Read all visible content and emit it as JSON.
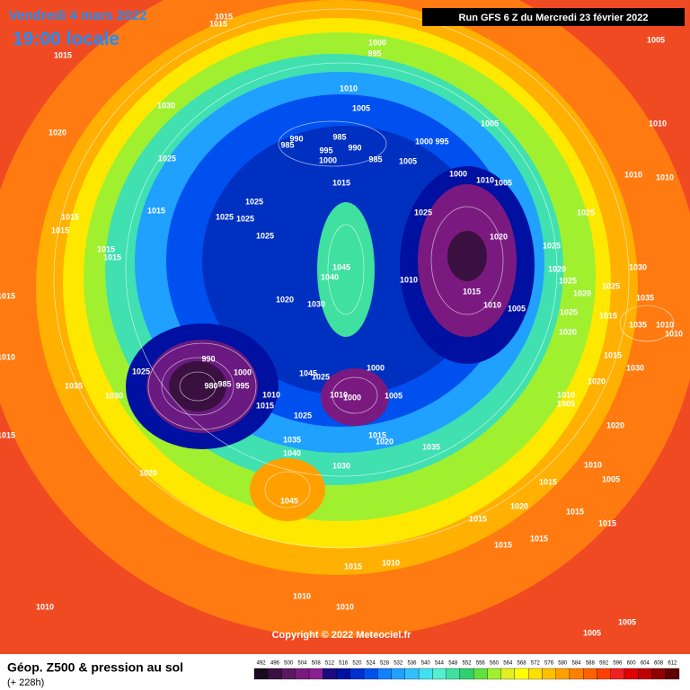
{
  "header": {
    "date": "Vendredi 4 mars 2022",
    "time": "19:00 locale",
    "run": "Run GFS 6 Z du Mercredi 23 février 2022"
  },
  "footer": {
    "title": "Géop. Z500 & pression au sol",
    "lead": "(+ 228h)",
    "copyright": "Copyright © 2022 Meteociel.fr"
  },
  "isobar_labels": [
    1015,
    1015,
    1005,
    1015,
    1000,
    995,
    1030,
    1010,
    1005,
    1020,
    1025,
    990,
    985,
    995,
    985,
    990,
    985,
    1000,
    1000,
    995,
    1005,
    1005,
    1010,
    1005,
    1010,
    1000,
    1015,
    1025,
    1015,
    1025,
    1025,
    1025,
    1025,
    1010,
    1010,
    1015,
    1015,
    1025,
    1020,
    1025,
    1015,
    1015,
    1020,
    1030,
    1045,
    1040,
    1010,
    1015,
    1010,
    1005,
    1025,
    1025,
    1020,
    1035,
    1020,
    1030,
    1015,
    1025,
    1015,
    1035,
    1010,
    1020,
    990,
    1000,
    995,
    985,
    980,
    1025,
    1000,
    1045,
    1025,
    1035,
    1030,
    1010,
    1010,
    1000,
    1005,
    1015,
    1025,
    1015,
    1030,
    1020,
    1010,
    1005,
    1020,
    1015,
    1020,
    1035,
    1040,
    1035,
    1030,
    1010,
    1020,
    1015,
    1045,
    1005,
    1020,
    1015,
    1015,
    1015,
    1015,
    1015,
    1015,
    1010,
    1010,
    1010,
    1010,
    1005,
    1005,
    1010,
    1015,
    1010
  ],
  "legend": {
    "values": [
      492,
      496,
      500,
      504,
      508,
      512,
      516,
      520,
      524,
      528,
      532,
      536,
      540,
      544,
      548,
      552,
      556,
      560,
      564,
      568,
      572,
      576,
      580,
      584,
      588,
      592,
      596,
      600,
      604,
      608,
      612
    ],
    "colors": [
      "#1a0a1e",
      "#3a1040",
      "#5a1a60",
      "#7a1a80",
      "#8a2090",
      "#1a0a80",
      "#0010a0",
      "#0030d0",
      "#0050f0",
      "#1080ff",
      "#20a0ff",
      "#30c0ff",
      "#40e0f0",
      "#50f0d0",
      "#40e0a0",
      "#30d070",
      "#60e040",
      "#a0f030",
      "#e0f020",
      "#ffff00",
      "#ffe000",
      "#ffc000",
      "#ffa000",
      "#ff8000",
      "#ff6000",
      "#ff4000",
      "#f02020",
      "#e00000",
      "#c00000",
      "#900000",
      "#600000"
    ]
  }
}
